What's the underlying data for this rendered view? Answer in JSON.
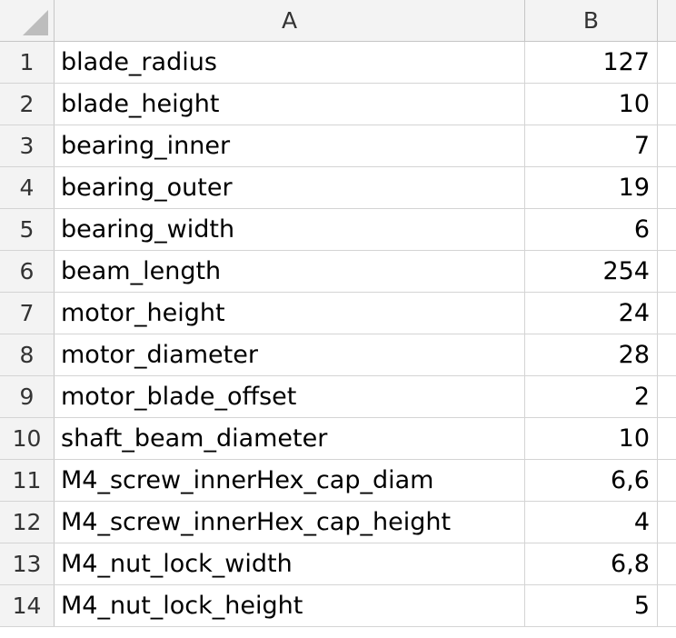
{
  "columns": [
    "A",
    "B"
  ],
  "rows": [
    {
      "num": "1",
      "name": "blade_radius",
      "value": "127"
    },
    {
      "num": "2",
      "name": "blade_height",
      "value": "10"
    },
    {
      "num": "3",
      "name": "bearing_inner",
      "value": "7"
    },
    {
      "num": "4",
      "name": "bearing_outer",
      "value": "19"
    },
    {
      "num": "5",
      "name": "bearing_width",
      "value": "6"
    },
    {
      "num": "6",
      "name": "beam_length",
      "value": "254"
    },
    {
      "num": "7",
      "name": "motor_height",
      "value": "24"
    },
    {
      "num": "8",
      "name": "motor_diameter",
      "value": "28"
    },
    {
      "num": "9",
      "name": "motor_blade_offset",
      "value": "2"
    },
    {
      "num": "10",
      "name": "shaft_beam_diameter",
      "value": "10"
    },
    {
      "num": "11",
      "name": "M4_screw_innerHex_cap_diam",
      "value": "6,6"
    },
    {
      "num": "12",
      "name": "M4_screw_innerHex_cap_height",
      "value": "4"
    },
    {
      "num": "13",
      "name": "M4_nut_lock_width",
      "value": "6,8"
    },
    {
      "num": "14",
      "name": "M4_nut_lock_height",
      "value": "5"
    }
  ]
}
